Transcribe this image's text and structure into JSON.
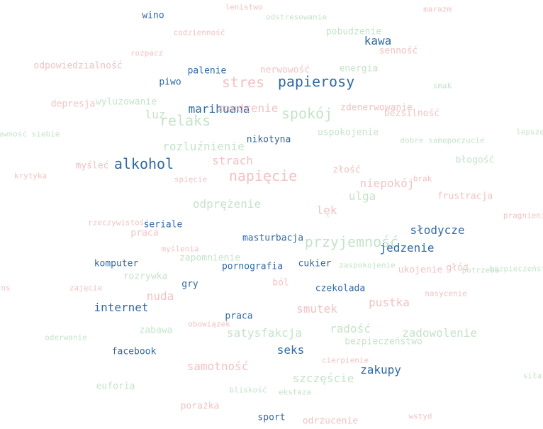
{
  "colors": {
    "blue": "#2f6aa3",
    "pink": "#f2c2c3",
    "green": "#c5e3c9"
  },
  "words": [
    {
      "text": "lenistwo"
    },
    {
      "text": "marazm"
    },
    {
      "text": "wino"
    },
    {
      "text": "odstresowanie"
    },
    {
      "text": "codzienność"
    },
    {
      "text": "pobudzenie"
    },
    {
      "text": "kawa"
    },
    {
      "text": "rozpacz"
    },
    {
      "text": "senność"
    },
    {
      "text": "odpowiedzialność"
    },
    {
      "text": "palenie"
    },
    {
      "text": "nerwowość"
    },
    {
      "text": "energia"
    },
    {
      "text": "piwo"
    },
    {
      "text": "stres"
    },
    {
      "text": "papierosy"
    },
    {
      "text": "smak"
    },
    {
      "text": "depresja"
    },
    {
      "text": "wyluzowanie"
    },
    {
      "text": "marihuana"
    },
    {
      "text": "znudzenie"
    },
    {
      "text": "spokój"
    },
    {
      "text": "zdenerwowanie"
    },
    {
      "text": "bezsilność"
    },
    {
      "text": "luz"
    },
    {
      "text": "relaks"
    },
    {
      "text": "pewność siebie"
    },
    {
      "text": "uspokojenie"
    },
    {
      "text": "lepsze"
    },
    {
      "text": "nikotyna"
    },
    {
      "text": "dobre samopoczucie"
    },
    {
      "text": "rozluźnienie"
    },
    {
      "text": "błogość"
    },
    {
      "text": "strach"
    },
    {
      "text": "alkohol"
    },
    {
      "text": "myśleć"
    },
    {
      "text": "złość"
    },
    {
      "text": "krytyka"
    },
    {
      "text": "spięcie"
    },
    {
      "text": "napięcie"
    },
    {
      "text": "brak"
    },
    {
      "text": "niepokój"
    },
    {
      "text": "ulga"
    },
    {
      "text": "frustracja"
    },
    {
      "text": "odprężenie"
    },
    {
      "text": "lęk"
    },
    {
      "text": "pragnienie"
    },
    {
      "text": "rzeczywistość"
    },
    {
      "text": "seriale"
    },
    {
      "text": "praca"
    },
    {
      "text": "słodycze"
    },
    {
      "text": "masturbacja"
    },
    {
      "text": "przyjemność"
    },
    {
      "text": "jedzenie"
    },
    {
      "text": "myślenia"
    },
    {
      "text": "zapomnienie"
    },
    {
      "text": "komputer"
    },
    {
      "text": "pornografia"
    },
    {
      "text": "cukier"
    },
    {
      "text": "zaspokojenie"
    },
    {
      "text": "ukojenie"
    },
    {
      "text": "głód"
    },
    {
      "text": "potrzeba"
    },
    {
      "text": "bezpieczeństwa"
    },
    {
      "text": "rozrywka"
    },
    {
      "text": "ns"
    },
    {
      "text": "zajęcie"
    },
    {
      "text": "gry"
    },
    {
      "text": "ból"
    },
    {
      "text": "czekolada"
    },
    {
      "text": "nasycenie"
    },
    {
      "text": "nuda"
    },
    {
      "text": "pustka"
    },
    {
      "text": "internet"
    },
    {
      "text": "smutek"
    },
    {
      "text": "praca"
    },
    {
      "text": "obowiązek"
    },
    {
      "text": "radość"
    },
    {
      "text": "zabawa"
    },
    {
      "text": "satysfakcja"
    },
    {
      "text": "zadowolenie"
    },
    {
      "text": "oderwanie"
    },
    {
      "text": "bezpieczeństwo"
    },
    {
      "text": "facebook"
    },
    {
      "text": "seks"
    },
    {
      "text": "cierpienie"
    },
    {
      "text": "samotność"
    },
    {
      "text": "zakupy"
    },
    {
      "text": "siła"
    },
    {
      "text": "szczęście"
    },
    {
      "text": "euforia"
    },
    {
      "text": "bliskość"
    },
    {
      "text": "ekstaza"
    },
    {
      "text": "porażka"
    },
    {
      "text": "sport"
    },
    {
      "text": "odrzucenie"
    },
    {
      "text": "wstyd"
    }
  ]
}
